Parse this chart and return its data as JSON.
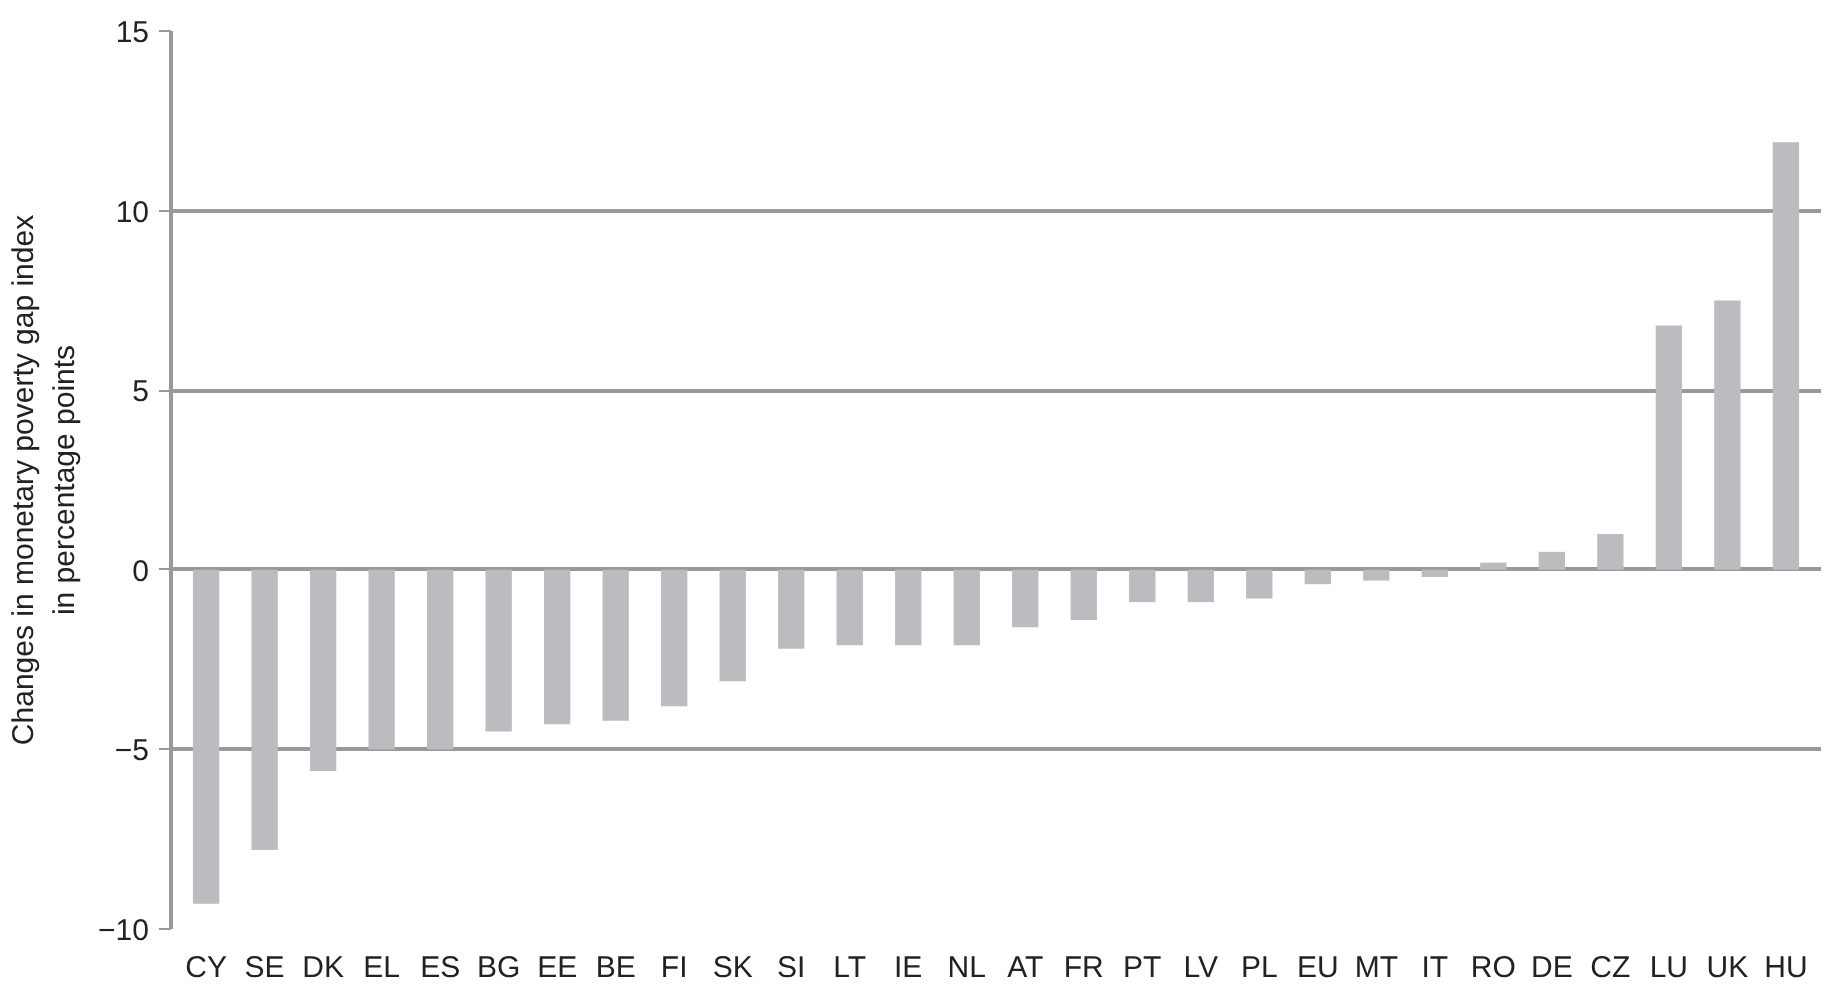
{
  "chart_data": {
    "type": "bar",
    "ylabel": "Changes in monetary poverty gap index\nin percentage points",
    "categories": [
      "CY",
      "SE",
      "DK",
      "EL",
      "ES",
      "BG",
      "EE",
      "BE",
      "FI",
      "SK",
      "SI",
      "LT",
      "IE",
      "NL",
      "AT",
      "FR",
      "PT",
      "LV",
      "PL",
      "EU",
      "MT",
      "IT",
      "RO",
      "DE",
      "CZ",
      "LU",
      "UK",
      "HU"
    ],
    "values": [
      -9.3,
      -7.8,
      -5.6,
      -5.0,
      -5.0,
      -4.5,
      -4.3,
      -4.2,
      -3.8,
      -3.1,
      -2.2,
      -2.1,
      -2.1,
      -2.1,
      -1.6,
      -1.4,
      -0.9,
      -0.9,
      -0.8,
      -0.4,
      -0.3,
      -0.2,
      0.2,
      0.5,
      1.0,
      6.8,
      7.5,
      11.9
    ],
    "color": "#bbbcbf",
    "ylim": [
      -10,
      15
    ],
    "yticks": [
      {
        "value": -10,
        "label": "−10"
      },
      {
        "value": -5,
        "label": "−5"
      },
      0,
      5,
      10,
      15
    ],
    "grid": "y"
  }
}
